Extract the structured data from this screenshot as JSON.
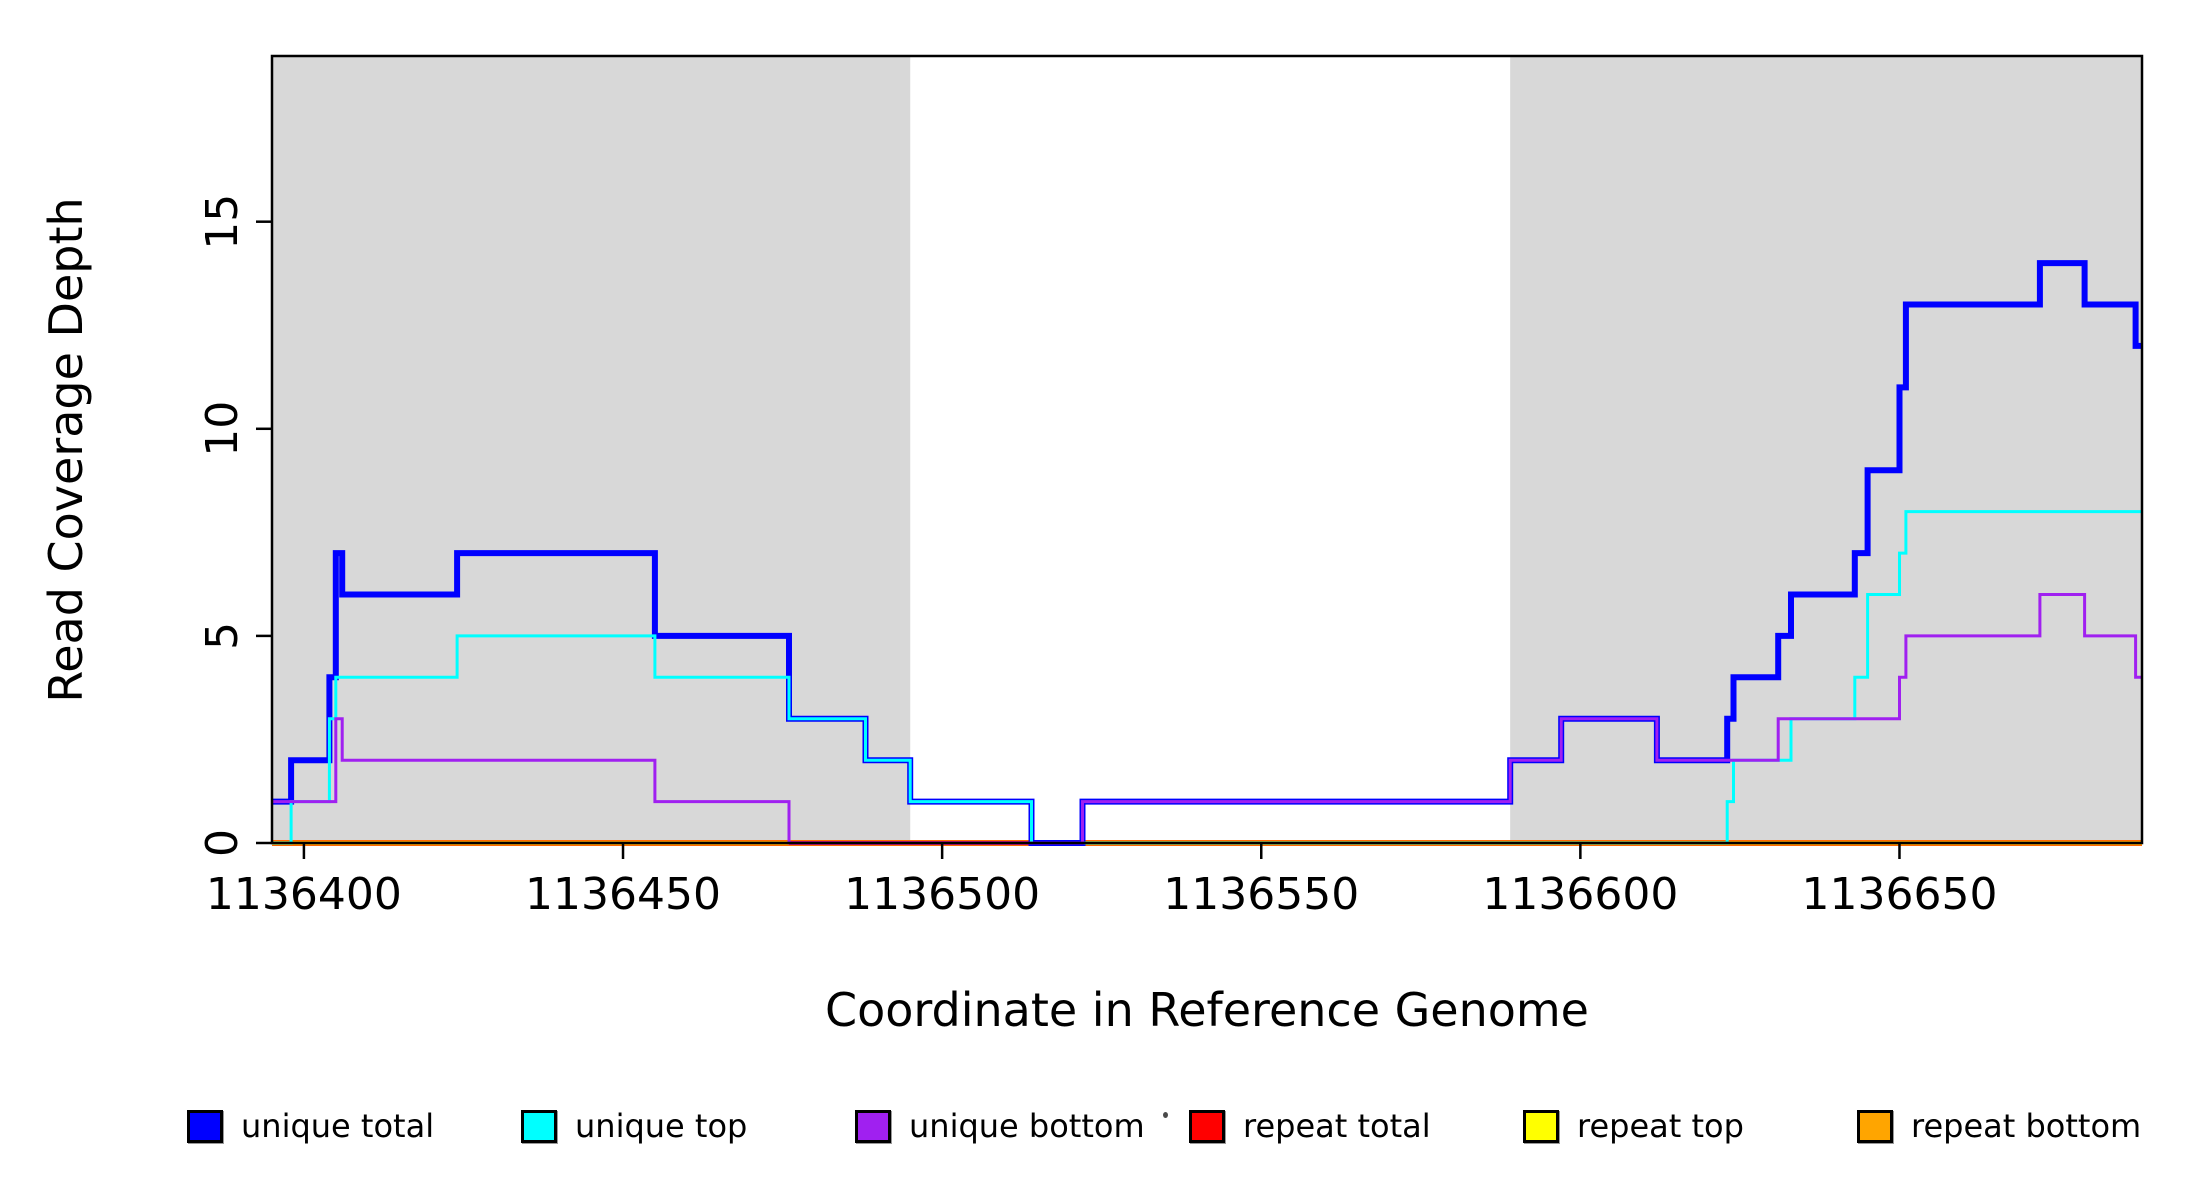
{
  "chart_data": {
    "type": "line",
    "subtype": "step",
    "title": "",
    "xlabel": "Coordinate in Reference Genome",
    "ylabel": "Read Coverage Depth",
    "xlim": [
      1136395,
      1136688
    ],
    "ylim": [
      0,
      19
    ],
    "x_ticks": [
      1136400,
      1136450,
      1136500,
      1136550,
      1136600,
      1136650
    ],
    "y_ticks": [
      0,
      5,
      10,
      15
    ],
    "grid": false,
    "plot_background": "#FFFFFF",
    "shaded_regions": [
      {
        "name": "left-gray-block",
        "from": 1136395,
        "to": 1136495,
        "color": "#D8D8D8"
      },
      {
        "name": "right-gray-block",
        "from": 1136589,
        "to": 1136688,
        "color": "#D8D8D8"
      }
    ],
    "series": [
      {
        "name": "unique total",
        "color": "#0000FF",
        "steps": [
          [
            1136395,
            1
          ],
          [
            1136398,
            2
          ],
          [
            1136404,
            4
          ],
          [
            1136405,
            7
          ],
          [
            1136406,
            6
          ],
          [
            1136424,
            7
          ],
          [
            1136455,
            5
          ],
          [
            1136476,
            3
          ],
          [
            1136488,
            2
          ],
          [
            1136495,
            1
          ],
          [
            1136514,
            0
          ],
          [
            1136522,
            1
          ],
          [
            1136589,
            2
          ],
          [
            1136597,
            3
          ],
          [
            1136612,
            2
          ],
          [
            1136623,
            3
          ],
          [
            1136624,
            4
          ],
          [
            1136631,
            5
          ],
          [
            1136633,
            6
          ],
          [
            1136643,
            7
          ],
          [
            1136645,
            9
          ],
          [
            1136650,
            11
          ],
          [
            1136651,
            13
          ],
          [
            1136672,
            14
          ],
          [
            1136679,
            13
          ],
          [
            1136687,
            12
          ]
        ]
      },
      {
        "name": "unique top",
        "color": "#00FFFF",
        "steps": [
          [
            1136395,
            0
          ],
          [
            1136398,
            1
          ],
          [
            1136404,
            3
          ],
          [
            1136405,
            4
          ],
          [
            1136424,
            5
          ],
          [
            1136455,
            4
          ],
          [
            1136476,
            3
          ],
          [
            1136488,
            2
          ],
          [
            1136495,
            1
          ],
          [
            1136514,
            0
          ],
          [
            1136623,
            1
          ],
          [
            1136624,
            2
          ],
          [
            1136633,
            3
          ],
          [
            1136643,
            4
          ],
          [
            1136645,
            6
          ],
          [
            1136650,
            7
          ],
          [
            1136651,
            8
          ]
        ]
      },
      {
        "name": "unique bottom",
        "color": "#A020F0",
        "steps": [
          [
            1136395,
            1
          ],
          [
            1136405,
            3
          ],
          [
            1136406,
            2
          ],
          [
            1136455,
            1
          ],
          [
            1136476,
            0
          ],
          [
            1136522,
            1
          ],
          [
            1136589,
            2
          ],
          [
            1136597,
            3
          ],
          [
            1136612,
            2
          ],
          [
            1136631,
            3
          ],
          [
            1136650,
            4
          ],
          [
            1136651,
            5
          ],
          [
            1136672,
            6
          ],
          [
            1136679,
            5
          ],
          [
            1136687,
            4
          ]
        ]
      },
      {
        "name": "repeat total",
        "color": "#FF0000",
        "steps": [
          [
            1136395,
            0
          ]
        ]
      },
      {
        "name": "repeat top",
        "color": "#FFFF00",
        "steps": [
          [
            1136395,
            0
          ]
        ]
      },
      {
        "name": "repeat bottom",
        "color": "#FFA500",
        "steps": [
          [
            1136395,
            0
          ]
        ]
      }
    ],
    "zero_line_overlays": [
      {
        "name": "red-zero-segment",
        "color": "#E8104A",
        "from": 1136476,
        "to": 1136522,
        "depth": 0
      }
    ],
    "legend": {
      "position": "bottom",
      "entries": [
        {
          "label": "unique total",
          "color": "#0000FF"
        },
        {
          "label": "unique top",
          "color": "#00FFFF"
        },
        {
          "label": "unique bottom",
          "color": "#A020F0"
        },
        {
          "label": "repeat total",
          "color": "#FF0000"
        },
        {
          "label": "repeat top",
          "color": "#FFFF00"
        },
        {
          "label": "repeat bottom",
          "color": "#FFA500"
        }
      ]
    }
  }
}
